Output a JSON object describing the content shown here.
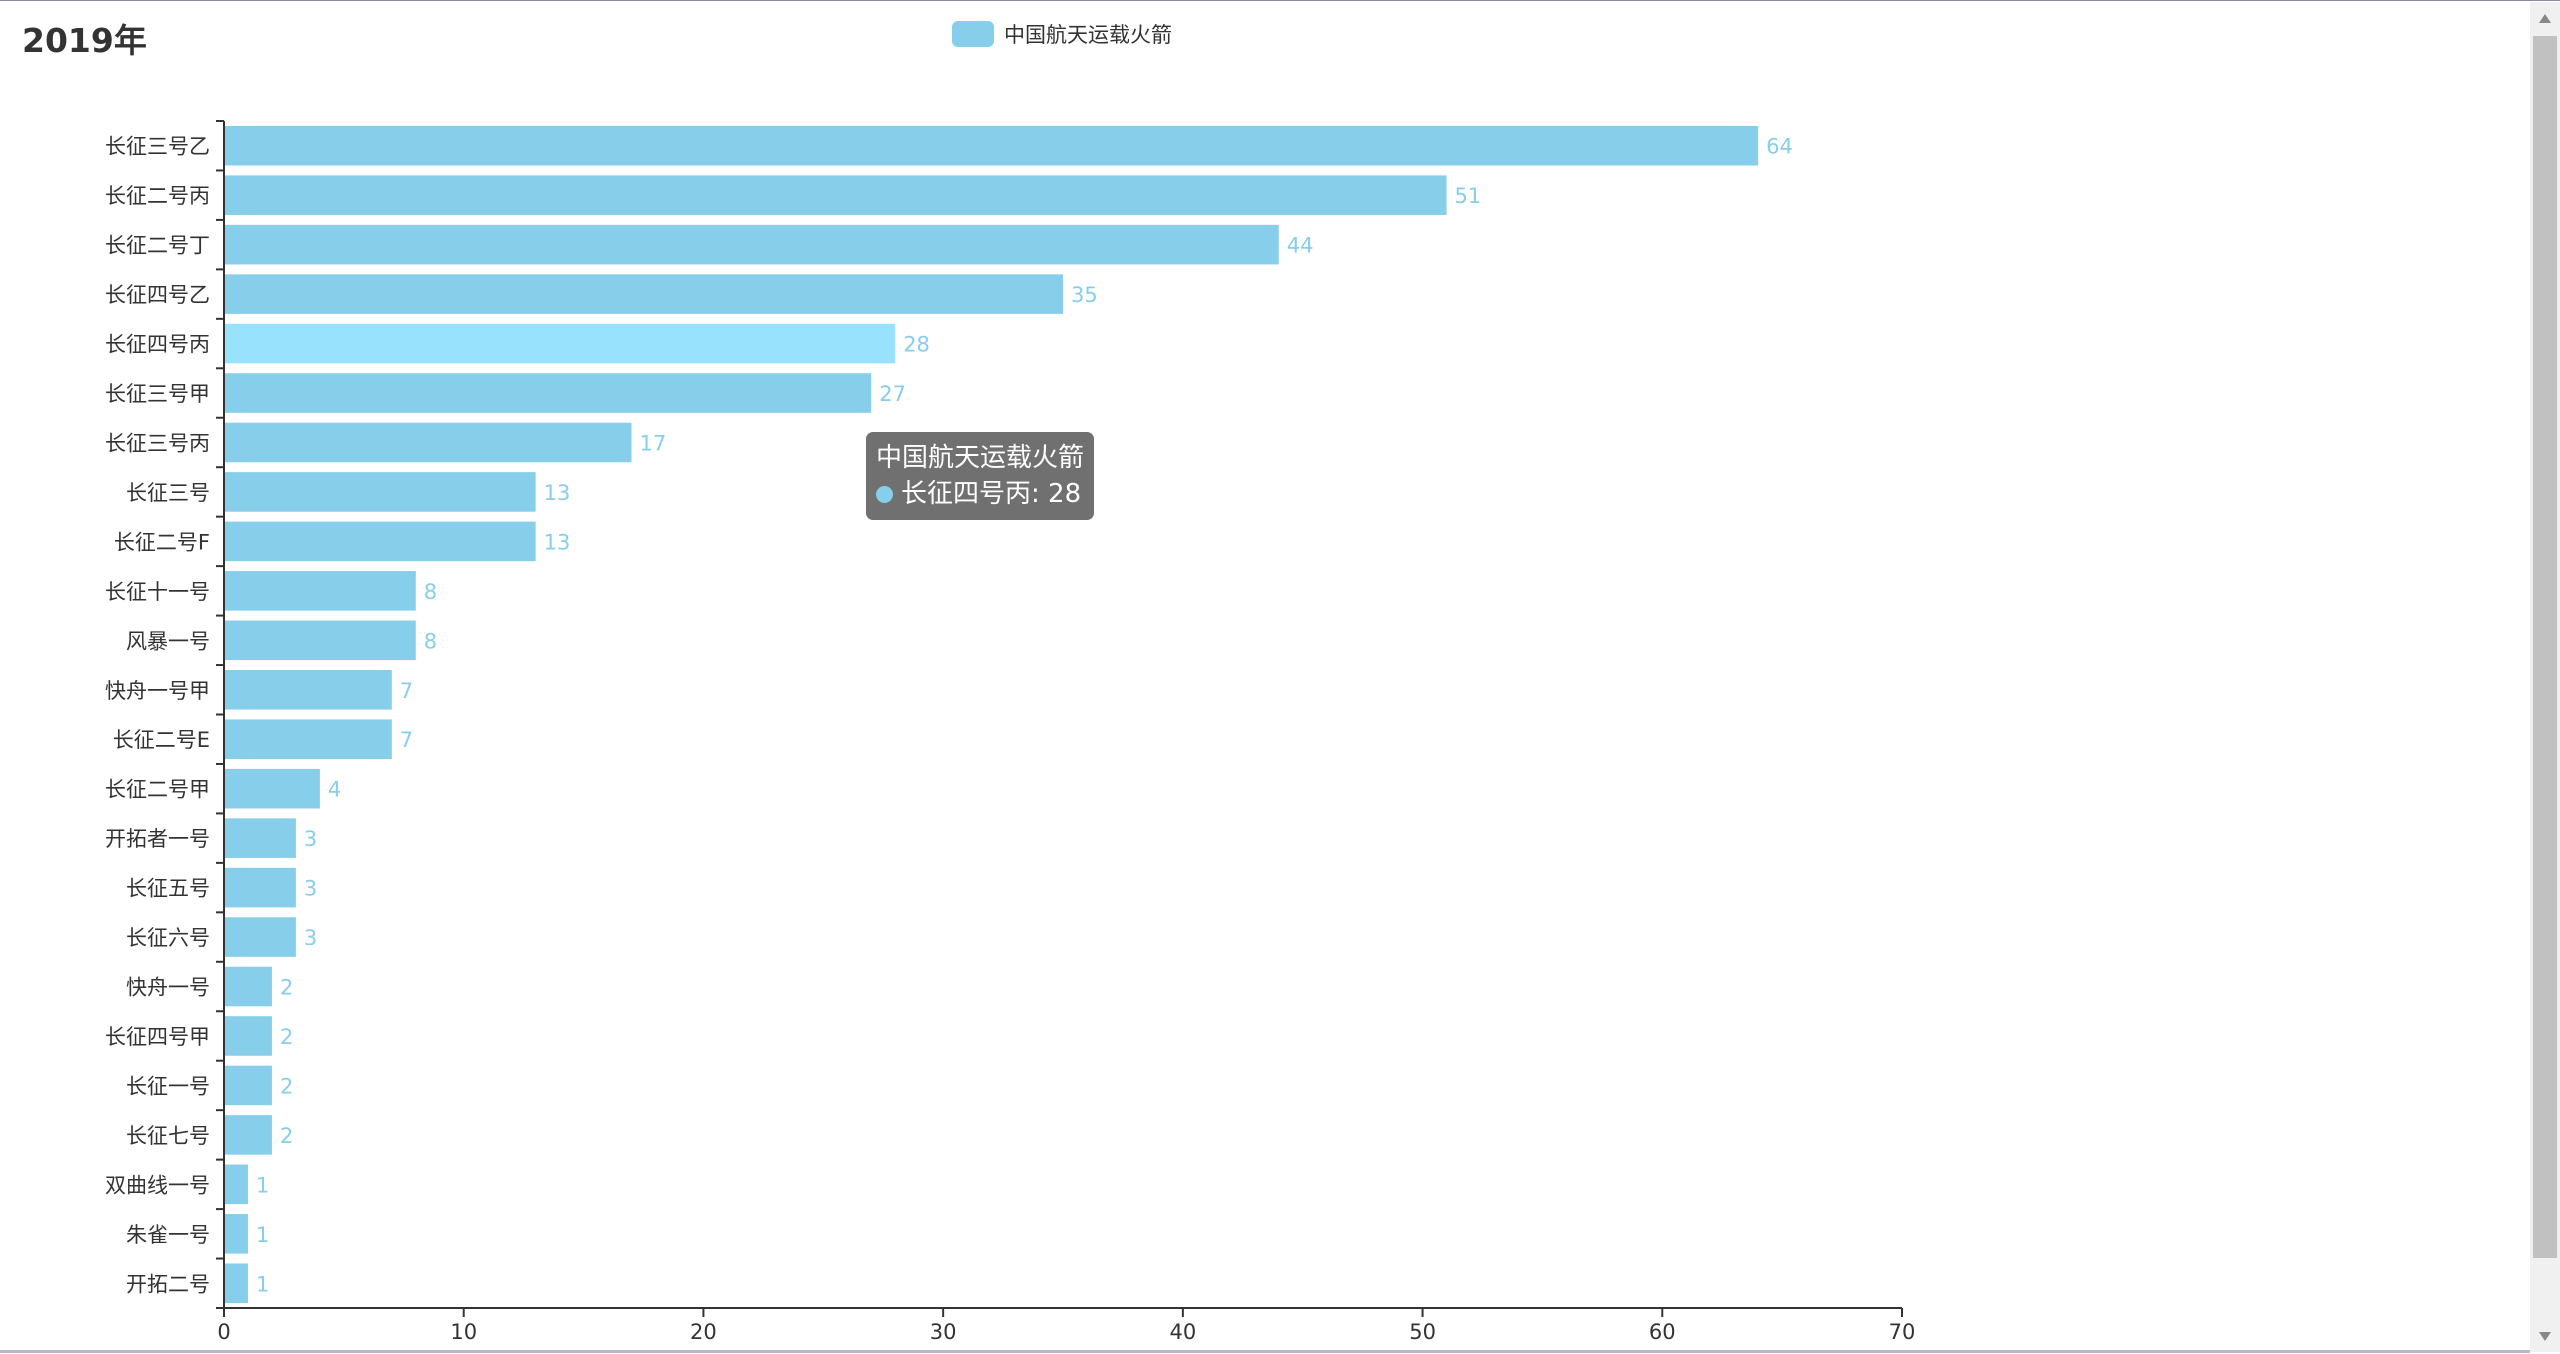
{
  "title": "2019年",
  "legend": {
    "label": "中国航天运载火箭"
  },
  "colors": {
    "bar": "#87ceeb",
    "bar_highlight": "#98e2fd",
    "label": "#87ceeb",
    "axis": "#333333"
  },
  "tooltip": {
    "series": "中国航天运载火箭",
    "item": "长征四号丙: 28"
  },
  "chart_data": {
    "type": "bar",
    "orientation": "horizontal",
    "title": "2019年",
    "series": [
      {
        "name": "中国航天运载火箭",
        "values": [
          64,
          51,
          44,
          35,
          28,
          27,
          17,
          13,
          13,
          8,
          8,
          7,
          7,
          4,
          3,
          3,
          3,
          2,
          2,
          2,
          2,
          1,
          1,
          1
        ]
      }
    ],
    "categories": [
      "长征三号乙",
      "长征二号丙",
      "长征二号丁",
      "长征四号乙",
      "长征四号丙",
      "长征三号甲",
      "长征三号丙",
      "长征三号",
      "长征二号F",
      "长征十一号",
      "风暴一号",
      "快舟一号甲",
      "长征二号E",
      "长征二号甲",
      "开拓者一号",
      "长征五号",
      "长征六号",
      "快舟一号",
      "长征四号甲",
      "长征一号",
      "长征七号",
      "双曲线一号",
      "朱雀一号",
      "开拓二号"
    ],
    "xlim": [
      0,
      70
    ],
    "xticks": [
      0,
      10,
      20,
      30,
      40,
      50,
      60,
      70
    ],
    "highlighted": "长征四号丙",
    "legend_position": "top-center",
    "grid": false
  }
}
